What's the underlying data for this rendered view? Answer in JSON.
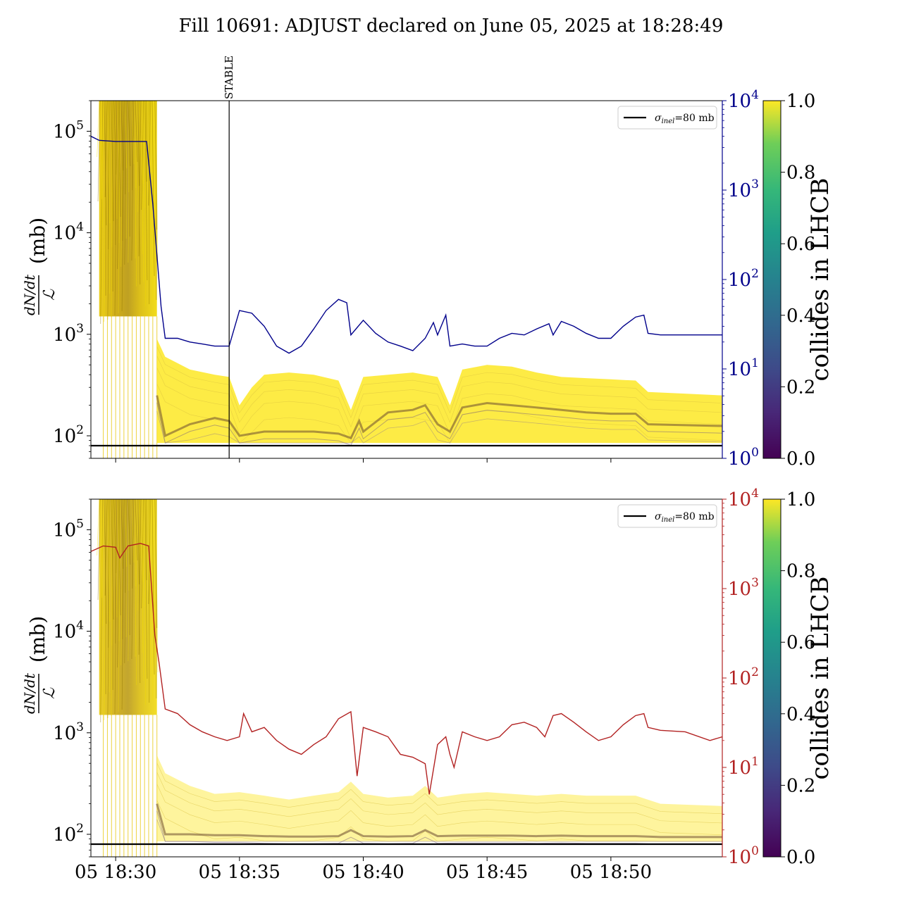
{
  "figure": {
    "title": "Fill 10691: ADJUST declared on June 05, 2025 at 18:28:49"
  },
  "chart_data": [
    {
      "type": "line",
      "panel": "top",
      "title": "",
      "ylabel_fraction_num": "dN/dt",
      "ylabel_fraction_den": "ℒ",
      "ylabel_unit": "(mb)",
      "yscale": "log",
      "ylim": [
        60,
        200000
      ],
      "yticks": [
        {
          "value": 100,
          "label": "10",
          "exp": "2"
        },
        {
          "value": 1000,
          "label": "10",
          "exp": "3"
        },
        {
          "value": 10000,
          "label": "10",
          "exp": "4"
        },
        {
          "value": 100000,
          "label": "10",
          "exp": "5"
        }
      ],
      "y2scale": "log",
      "y2lim": [
        1,
        10000
      ],
      "y2color": "#00008b",
      "y2ticks": [
        {
          "value": 1,
          "label": "10",
          "exp": "0"
        },
        {
          "value": 10,
          "label": "10",
          "exp": "1"
        },
        {
          "value": 100,
          "label": "10",
          "exp": "2"
        },
        {
          "value": 1000,
          "label": "10",
          "exp": "3"
        },
        {
          "value": 10000,
          "label": "10",
          "exp": "4"
        }
      ],
      "xlim": [
        "18:29:00",
        "18:54:30"
      ],
      "xticks": [
        "18:30",
        "18:35",
        "18:40",
        "18:45",
        "18:50"
      ],
      "xticklabels": [],
      "reference_line": {
        "value": 80,
        "label_sym": "σ",
        "label_sub": "inel",
        "label_rest": "=80 mb",
        "color": "#000000"
      },
      "legend_position": "upper right",
      "annotation": {
        "text": "STABLE",
        "time": "18:34:35"
      },
      "colorbar": {
        "label": "collides in LHCB",
        "range": [
          0.0,
          1.0
        ],
        "ticks": [
          "0.0",
          "0.2",
          "0.4",
          "0.6",
          "0.8",
          "1.0"
        ],
        "colormap": "viridis"
      },
      "secondary_series": {
        "color": "#00008b",
        "points": [
          [
            "18:29:00",
            4000
          ],
          [
            "18:29:20",
            3600
          ],
          [
            "18:30:00",
            3500
          ],
          [
            "18:31:00",
            3500
          ],
          [
            "18:31:15",
            3500
          ],
          [
            "18:31:30",
            700
          ],
          [
            "18:31:50",
            50
          ],
          [
            "18:32:00",
            22
          ],
          [
            "18:32:30",
            22
          ],
          [
            "18:33:00",
            20
          ],
          [
            "18:33:30",
            19
          ],
          [
            "18:34:00",
            18
          ],
          [
            "18:34:35",
            18
          ],
          [
            "18:35:00",
            45
          ],
          [
            "18:35:30",
            42
          ],
          [
            "18:36:00",
            30
          ],
          [
            "18:36:30",
            18
          ],
          [
            "18:37:00",
            15
          ],
          [
            "18:37:30",
            18
          ],
          [
            "18:38:00",
            28
          ],
          [
            "18:38:30",
            45
          ],
          [
            "18:39:00",
            60
          ],
          [
            "18:39:20",
            55
          ],
          [
            "18:39:30",
            24
          ],
          [
            "18:40:00",
            35
          ],
          [
            "18:40:30",
            25
          ],
          [
            "18:41:00",
            20
          ],
          [
            "18:41:30",
            18
          ],
          [
            "18:42:00",
            16
          ],
          [
            "18:42:30",
            22
          ],
          [
            "18:42:50",
            33
          ],
          [
            "18:43:00",
            24
          ],
          [
            "18:43:20",
            40
          ],
          [
            "18:43:30",
            18
          ],
          [
            "18:44:00",
            19
          ],
          [
            "18:44:30",
            18
          ],
          [
            "18:45:00",
            18
          ],
          [
            "18:45:30",
            22
          ],
          [
            "18:46:00",
            25
          ],
          [
            "18:46:30",
            24
          ],
          [
            "18:47:00",
            28
          ],
          [
            "18:47:30",
            32
          ],
          [
            "18:47:40",
            24
          ],
          [
            "18:48:00",
            34
          ],
          [
            "18:48:30",
            30
          ],
          [
            "18:49:00",
            25
          ],
          [
            "18:49:30",
            22
          ],
          [
            "18:50:00",
            22
          ],
          [
            "18:50:30",
            30
          ],
          [
            "18:51:00",
            38
          ],
          [
            "18:51:20",
            40
          ],
          [
            "18:51:30",
            25
          ],
          [
            "18:52:00",
            24
          ],
          [
            "18:53:00",
            24
          ],
          [
            "18:54:30",
            24
          ]
        ]
      },
      "band_upper": [
        [
          "18:31:40",
          900
        ],
        [
          "18:32:00",
          600
        ],
        [
          "18:33:00",
          450
        ],
        [
          "18:34:00",
          400
        ],
        [
          "18:34:35",
          380
        ],
        [
          "18:35:00",
          200
        ],
        [
          "18:35:30",
          300
        ],
        [
          "18:36:00",
          400
        ],
        [
          "18:37:00",
          420
        ],
        [
          "18:38:00",
          400
        ],
        [
          "18:39:00",
          350
        ],
        [
          "18:39:30",
          180
        ],
        [
          "18:40:00",
          380
        ],
        [
          "18:41:00",
          400
        ],
        [
          "18:42:00",
          420
        ],
        [
          "18:43:00",
          380
        ],
        [
          "18:43:30",
          200
        ],
        [
          "18:44:00",
          450
        ],
        [
          "18:45:00",
          500
        ],
        [
          "18:46:00",
          480
        ],
        [
          "18:47:00",
          420
        ],
        [
          "18:48:00",
          380
        ],
        [
          "18:49:00",
          370
        ],
        [
          "18:50:00",
          360
        ],
        [
          "18:51:00",
          350
        ],
        [
          "18:51:30",
          270
        ],
        [
          "18:53:00",
          260
        ],
        [
          "18:54:30",
          250
        ]
      ],
      "median_line": [
        [
          "18:31:40",
          250
        ],
        [
          "18:32:00",
          100
        ],
        [
          "18:33:00",
          130
        ],
        [
          "18:34:00",
          150
        ],
        [
          "18:34:35",
          140
        ],
        [
          "18:35:00",
          100
        ],
        [
          "18:36:00",
          110
        ],
        [
          "18:37:00",
          110
        ],
        [
          "18:38:00",
          110
        ],
        [
          "18:39:00",
          105
        ],
        [
          "18:39:30",
          95
        ],
        [
          "18:39:50",
          140
        ],
        [
          "18:40:00",
          110
        ],
        [
          "18:41:00",
          170
        ],
        [
          "18:42:00",
          180
        ],
        [
          "18:42:30",
          200
        ],
        [
          "18:43:00",
          130
        ],
        [
          "18:43:30",
          110
        ],
        [
          "18:44:00",
          190
        ],
        [
          "18:45:00",
          210
        ],
        [
          "18:46:00",
          200
        ],
        [
          "18:47:00",
          190
        ],
        [
          "18:48:00",
          180
        ],
        [
          "18:49:00",
          170
        ],
        [
          "18:50:00",
          165
        ],
        [
          "18:51:00",
          165
        ],
        [
          "18:51:30",
          130
        ],
        [
          "18:54:30",
          125
        ]
      ]
    },
    {
      "type": "line",
      "panel": "bottom",
      "title": "",
      "ylabel_fraction_num": "dN/dt",
      "ylabel_fraction_den": "ℒ",
      "ylabel_unit": "(mb)",
      "yscale": "log",
      "ylim": [
        60,
        200000
      ],
      "yticks": [
        {
          "value": 100,
          "label": "10",
          "exp": "2"
        },
        {
          "value": 1000,
          "label": "10",
          "exp": "3"
        },
        {
          "value": 10000,
          "label": "10",
          "exp": "4"
        },
        {
          "value": 100000,
          "label": "10",
          "exp": "5"
        }
      ],
      "y2scale": "log",
      "y2lim": [
        1,
        10000
      ],
      "y2color": "#b22222",
      "y2ticks": [
        {
          "value": 1,
          "label": "10",
          "exp": "0"
        },
        {
          "value": 10,
          "label": "10",
          "exp": "1"
        },
        {
          "value": 100,
          "label": "10",
          "exp": "2"
        },
        {
          "value": 1000,
          "label": "10",
          "exp": "3"
        },
        {
          "value": 10000,
          "label": "10",
          "exp": "4"
        }
      ],
      "xlim": [
        "18:29:00",
        "18:54:30"
      ],
      "xticks": [
        "18:30",
        "18:35",
        "18:40",
        "18:45",
        "18:50"
      ],
      "xticklabels": [
        "05 18:30",
        "05 18:35",
        "05 18:40",
        "05 18:45",
        "05 18:50"
      ],
      "reference_line": {
        "value": 80,
        "label_sym": "σ",
        "label_sub": "inel",
        "label_rest": "=80 mb",
        "color": "#000000"
      },
      "legend_position": "upper right",
      "colorbar": {
        "label": "collides in LHCB",
        "range": [
          0.0,
          1.0
        ],
        "ticks": [
          "0.0",
          "0.2",
          "0.4",
          "0.6",
          "0.8",
          "1.0"
        ],
        "colormap": "viridis"
      },
      "secondary_series": {
        "color": "#b22222",
        "points": [
          [
            "18:29:00",
            2600
          ],
          [
            "18:29:30",
            3000
          ],
          [
            "18:30:00",
            2900
          ],
          [
            "18:30:10",
            2200
          ],
          [
            "18:30:30",
            3000
          ],
          [
            "18:31:00",
            3200
          ],
          [
            "18:31:20",
            3000
          ],
          [
            "18:31:35",
            300
          ],
          [
            "18:31:45",
            150
          ],
          [
            "18:32:00",
            45
          ],
          [
            "18:32:30",
            40
          ],
          [
            "18:33:00",
            30
          ],
          [
            "18:33:30",
            25
          ],
          [
            "18:34:00",
            22
          ],
          [
            "18:34:30",
            20
          ],
          [
            "18:35:00",
            22
          ],
          [
            "18:35:10",
            40
          ],
          [
            "18:35:30",
            25
          ],
          [
            "18:36:00",
            28
          ],
          [
            "18:36:30",
            20
          ],
          [
            "18:37:00",
            16
          ],
          [
            "18:37:30",
            14
          ],
          [
            "18:38:00",
            18
          ],
          [
            "18:38:30",
            22
          ],
          [
            "18:39:00",
            35
          ],
          [
            "18:39:30",
            42
          ],
          [
            "18:39:45",
            8
          ],
          [
            "18:40:00",
            28
          ],
          [
            "18:40:30",
            25
          ],
          [
            "18:41:00",
            22
          ],
          [
            "18:41:30",
            14
          ],
          [
            "18:42:00",
            13
          ],
          [
            "18:42:30",
            11
          ],
          [
            "18:42:40",
            5
          ],
          [
            "18:43:00",
            18
          ],
          [
            "18:43:20",
            22
          ],
          [
            "18:43:30",
            14
          ],
          [
            "18:43:40",
            10
          ],
          [
            "18:44:00",
            25
          ],
          [
            "18:44:30",
            22
          ],
          [
            "18:45:00",
            20
          ],
          [
            "18:45:30",
            22
          ],
          [
            "18:46:00",
            30
          ],
          [
            "18:46:30",
            32
          ],
          [
            "18:47:00",
            28
          ],
          [
            "18:47:20",
            22
          ],
          [
            "18:47:40",
            38
          ],
          [
            "18:48:00",
            40
          ],
          [
            "18:48:30",
            32
          ],
          [
            "18:49:00",
            25
          ],
          [
            "18:49:30",
            20
          ],
          [
            "18:50:00",
            22
          ],
          [
            "18:50:30",
            30
          ],
          [
            "18:51:00",
            38
          ],
          [
            "18:51:20",
            40
          ],
          [
            "18:51:30",
            28
          ],
          [
            "18:52:00",
            26
          ],
          [
            "18:53:00",
            25
          ],
          [
            "18:54:00",
            20
          ],
          [
            "18:54:30",
            22
          ]
        ]
      },
      "band_upper": [
        [
          "18:31:40",
          600
        ],
        [
          "18:32:00",
          400
        ],
        [
          "18:33:00",
          300
        ],
        [
          "18:34:00",
          250
        ],
        [
          "18:35:00",
          260
        ],
        [
          "18:36:00",
          240
        ],
        [
          "18:37:00",
          220
        ],
        [
          "18:38:00",
          240
        ],
        [
          "18:39:00",
          260
        ],
        [
          "18:39:30",
          330
        ],
        [
          "18:40:00",
          250
        ],
        [
          "18:41:00",
          230
        ],
        [
          "18:42:00",
          240
        ],
        [
          "18:42:30",
          300
        ],
        [
          "18:43:00",
          230
        ],
        [
          "18:44:00",
          250
        ],
        [
          "18:45:00",
          260
        ],
        [
          "18:46:00",
          250
        ],
        [
          "18:47:00",
          240
        ],
        [
          "18:48:00",
          250
        ],
        [
          "18:49:00",
          240
        ],
        [
          "18:50:00",
          240
        ],
        [
          "18:51:00",
          240
        ],
        [
          "18:52:00",
          200
        ],
        [
          "18:54:30",
          190
        ]
      ],
      "median_line": [
        [
          "18:31:40",
          200
        ],
        [
          "18:32:00",
          100
        ],
        [
          "18:33:00",
          100
        ],
        [
          "18:34:00",
          98
        ],
        [
          "18:35:00",
          98
        ],
        [
          "18:36:00",
          96
        ],
        [
          "18:37:00",
          95
        ],
        [
          "18:38:00",
          95
        ],
        [
          "18:39:00",
          96
        ],
        [
          "18:39:30",
          110
        ],
        [
          "18:40:00",
          96
        ],
        [
          "18:41:00",
          95
        ],
        [
          "18:42:00",
          96
        ],
        [
          "18:42:30",
          110
        ],
        [
          "18:43:00",
          96
        ],
        [
          "18:44:00",
          97
        ],
        [
          "18:45:00",
          97
        ],
        [
          "18:46:00",
          97
        ],
        [
          "18:47:00",
          96
        ],
        [
          "18:48:00",
          97
        ],
        [
          "18:49:00",
          96
        ],
        [
          "18:50:00",
          96
        ],
        [
          "18:51:00",
          96
        ],
        [
          "18:52:00",
          94
        ],
        [
          "18:54:30",
          94
        ]
      ]
    }
  ]
}
